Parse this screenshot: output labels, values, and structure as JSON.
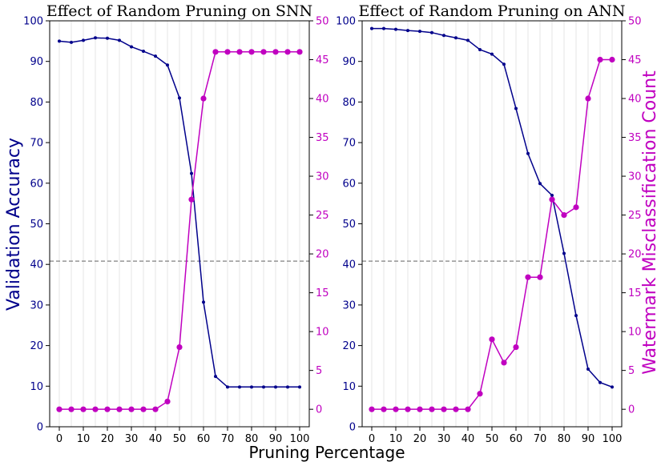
{
  "chart_data": {
    "type": "line",
    "shared_xlabel": "Pruning Percentage",
    "shared_ylabel_left": "Validation Accuracy",
    "shared_ylabel_right": "Watermark Misclassification Count",
    "colors": {
      "accuracy": "#00008b",
      "misclassification": "#c000c0",
      "threshold": "#808080",
      "grid": "#e6e6e6"
    },
    "x_ticks": [
      "0",
      "10",
      "20",
      "30",
      "40",
      "50",
      "60",
      "70",
      "80",
      "90",
      "100"
    ],
    "left_ticks": [
      "0",
      "10",
      "20",
      "30",
      "40",
      "50",
      "60",
      "70",
      "80",
      "90",
      "100"
    ],
    "right_ticks": [
      "0",
      "5",
      "10",
      "15",
      "20",
      "25",
      "30",
      "35",
      "40",
      "45",
      "50"
    ],
    "panels": [
      {
        "title": "Effect of Random Pruning on SNN",
        "x": [
          0,
          5,
          10,
          15,
          20,
          25,
          30,
          35,
          40,
          45,
          50,
          55,
          60,
          65,
          70,
          75,
          80,
          85,
          90,
          95,
          100
        ],
        "xlim": [
          -4,
          104
        ],
        "left_ylim": [
          0,
          100
        ],
        "right_ylim": [
          -2.25,
          50
        ],
        "threshold_left_value": 40.8,
        "series": [
          {
            "name": "Validation Accuracy",
            "axis": "left",
            "values": [
              95.0,
              94.7,
              95.2,
              95.8,
              95.7,
              95.2,
              93.6,
              92.5,
              91.3,
              89.1,
              81.0,
              62.4,
              30.7,
              12.4,
              9.8,
              9.8,
              9.8,
              9.8,
              9.8,
              9.8,
              9.8
            ]
          },
          {
            "name": "Watermark Misclassification Count",
            "axis": "right",
            "values": [
              0,
              0,
              0,
              0,
              0,
              0,
              0,
              0,
              0,
              1,
              8,
              27,
              40,
              46,
              46,
              46,
              46,
              46,
              46,
              46,
              46
            ]
          }
        ]
      },
      {
        "title": "Effect of Random Pruning on ANN",
        "x": [
          0,
          5,
          10,
          15,
          20,
          25,
          30,
          35,
          40,
          45,
          50,
          55,
          60,
          65,
          70,
          75,
          80,
          85,
          90,
          95,
          100
        ],
        "xlim": [
          -4,
          104
        ],
        "left_ylim": [
          0,
          100
        ],
        "right_ylim": [
          -2.25,
          50
        ],
        "threshold_left_value": 40.8,
        "series": [
          {
            "name": "Validation Accuracy",
            "axis": "left",
            "values": [
              98.1,
              98.1,
              97.9,
              97.6,
              97.4,
              97.1,
              96.4,
              95.8,
              95.2,
              92.9,
              91.8,
              89.3,
              78.4,
              67.3,
              59.9,
              57.0,
              42.7,
              27.4,
              14.2,
              10.9,
              9.8
            ]
          },
          {
            "name": "Watermark Misclassification Count",
            "axis": "right",
            "values": [
              0,
              0,
              0,
              0,
              0,
              0,
              0,
              0,
              0,
              2,
              9,
              6,
              8,
              17,
              17,
              27,
              25,
              26,
              40,
              45,
              45
            ]
          }
        ]
      }
    ]
  }
}
